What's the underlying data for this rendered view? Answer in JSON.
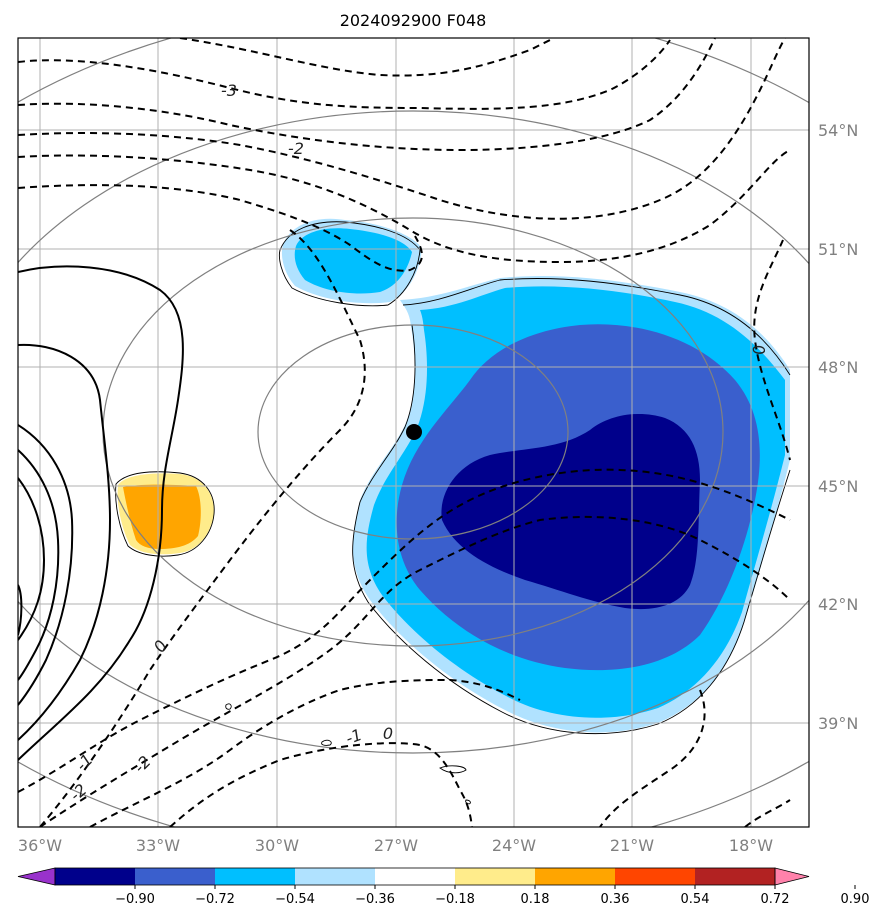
{
  "title": "2024092900 F048",
  "longitude_labels": [
    "36°W",
    "33°W",
    "30°W",
    "27°W",
    "24°W",
    "21°W",
    "18°W"
  ],
  "latitude_labels": [
    "54°N",
    "51°N",
    "48°N",
    "45°N",
    "42°N",
    "39°N"
  ],
  "colorbar": {
    "colors": [
      "#9932cc",
      "#00008b",
      "#3a5fcd",
      "#00bfff",
      "#b0e2ff",
      "#ffffff",
      "#ffec8b",
      "#ffa500",
      "#ff4500",
      "#b22222",
      "#ff82ab"
    ],
    "tick_labels": [
      "−0.90",
      "−0.72",
      "−0.54",
      "−0.36",
      "−0.18",
      "0.18",
      "0.36",
      "0.54",
      "0.72",
      "0.90"
    ]
  },
  "contour_labels": [
    "-3",
    "-2",
    "0",
    "0",
    "-1",
    "-2",
    "-2",
    "0",
    "-1"
  ],
  "marker": {
    "type": "storm-center-dot",
    "color": "#000000"
  }
}
